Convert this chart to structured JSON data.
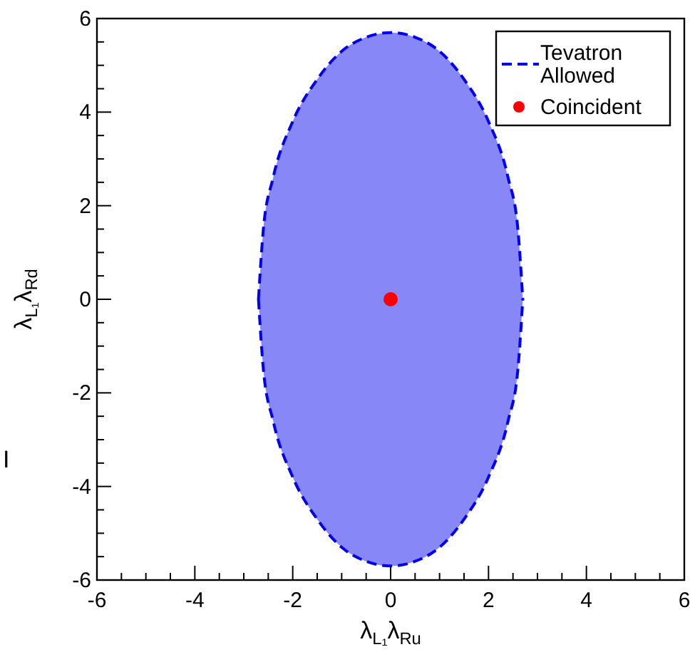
{
  "chart_data": {
    "type": "area",
    "xlabel": "λ$_{L₁}$λ$_{Ru}$",
    "ylabel": "λ$_{L₁}$λ$_{Rd}$",
    "xlim": [
      -6,
      6
    ],
    "ylim": [
      -6,
      6
    ],
    "xticks": [
      -6,
      {
        "value": -5.5,
        "label": null
      },
      {
        "value": -5,
        "label": null
      },
      {
        "value": -4.5,
        "label": null
      },
      -4,
      {
        "value": -3.5,
        "label": null
      },
      {
        "value": -3,
        "label": null
      },
      {
        "value": -2.5,
        "label": null
      },
      -2,
      {
        "value": -1.5,
        "label": null
      },
      {
        "value": -1,
        "label": null
      },
      {
        "value": -0.5,
        "label": null
      },
      0,
      {
        "value": 0.5,
        "label": null
      },
      {
        "value": 1,
        "label": null
      },
      {
        "value": 1.5,
        "label": null
      },
      2,
      {
        "value": 2.5,
        "label": null
      },
      {
        "value": 3,
        "label": null
      },
      {
        "value": 3.5,
        "label": null
      },
      4,
      {
        "value": 4.5,
        "label": null
      },
      {
        "value": 5,
        "label": null
      },
      {
        "value": 5.5,
        "label": null
      },
      6
    ],
    "yticks": [
      -6,
      {
        "value": -5.5,
        "label": null
      },
      {
        "value": -5,
        "label": null
      },
      {
        "value": -4.5,
        "label": null
      },
      -4,
      {
        "value": -3.5,
        "label": null
      },
      {
        "value": -3,
        "label": null
      },
      {
        "value": -2.5,
        "label": null
      },
      -2,
      {
        "value": -1.5,
        "label": null
      },
      {
        "value": -1,
        "label": null
      },
      {
        "value": -0.5,
        "label": null
      },
      0,
      {
        "value": 0.5,
        "label": null
      },
      {
        "value": 1,
        "label": null
      },
      {
        "value": 1.5,
        "label": null
      },
      2,
      {
        "value": 2.5,
        "label": null
      },
      {
        "value": 3,
        "label": null
      },
      {
        "value": 3.5,
        "label": null
      },
      4,
      {
        "value": 4.5,
        "label": null
      },
      {
        "value": 5,
        "label": null
      },
      {
        "value": 5.5,
        "label": null
      },
      6
    ],
    "legend": "top right",
    "annotations": [
      "I"
    ],
    "series": [
      {
        "name": "Tevatron Allowed",
        "type": "area",
        "color": "#0000ee",
        "line_style": "dashed",
        "x": [
          -2.7,
          -2.6,
          -2.4,
          -2.0,
          -1.5,
          -1.0,
          -0.5,
          0,
          0.5,
          1.0,
          1.5,
          2.0,
          2.4,
          2.6,
          2.7
        ],
        "values": [
          0,
          1.5,
          2.6,
          3.8,
          4.7,
          5.3,
          5.6,
          5.7,
          5.6,
          5.3,
          4.7,
          3.8,
          2.6,
          1.5,
          0
        ]
      },
      {
        "color": "#0000ee",
        "line_style": "dashed",
        "x": [
          -2.7,
          -2.6,
          -2.4,
          -2.0,
          -1.5,
          -1.0,
          -0.5,
          0,
          0.5,
          1.0,
          1.5,
          2.0,
          2.4,
          2.6,
          2.7
        ],
        "values": [
          0,
          -1.5,
          -2.6,
          -3.8,
          -4.7,
          -5.3,
          -5.6,
          -5.7,
          -5.6,
          -5.3,
          -4.7,
          -3.8,
          -2.6,
          -1.5,
          0
        ]
      },
      {
        "name": "Coincident",
        "type": "scatter",
        "color": "#ff0000",
        "marker": "circle",
        "x": [
          0
        ],
        "values": [
          0
        ]
      }
    ]
  }
}
